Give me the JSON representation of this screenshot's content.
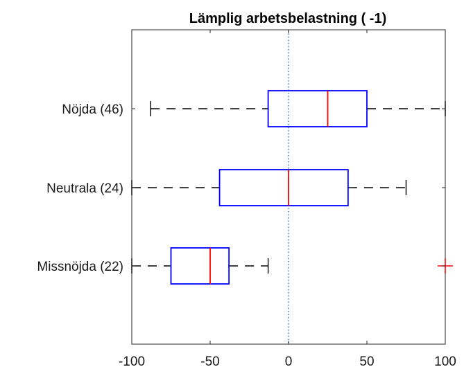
{
  "chart_data": {
    "type": "boxplot",
    "orientation": "horizontal",
    "title": "Lämplig arbetsbelastning ( -1)",
    "xlabel": "",
    "ylabel": "",
    "xlim": [
      -100,
      100
    ],
    "xticks": [
      "-100",
      "-50",
      "0",
      "50",
      "100"
    ],
    "reference_line": {
      "x": 0,
      "style": "dotted",
      "color": "#0072BD"
    },
    "box_color": "#0000FF",
    "median_color": "#FF0000",
    "whisker_color": "#000000",
    "outlier_color": "#FF0000",
    "categories": [
      "Nöjda (46)",
      "Neutrala (24)",
      "Missnöjda (22)"
    ],
    "boxes": [
      {
        "label": "Nöjda (46)",
        "whisker_low": -88,
        "q1": -13,
        "median": 25,
        "q3": 50,
        "whisker_high": 100,
        "outliers": []
      },
      {
        "label": "Neutrala (24)",
        "whisker_low": -100,
        "q1": -44,
        "median": 0,
        "q3": 38,
        "whisker_high": 75,
        "outliers": []
      },
      {
        "label": "Missnöjda (22)",
        "whisker_low": -100,
        "q1": -75,
        "median": -50,
        "q3": -38,
        "whisker_high": -13,
        "outliers": [
          100
        ]
      }
    ]
  }
}
